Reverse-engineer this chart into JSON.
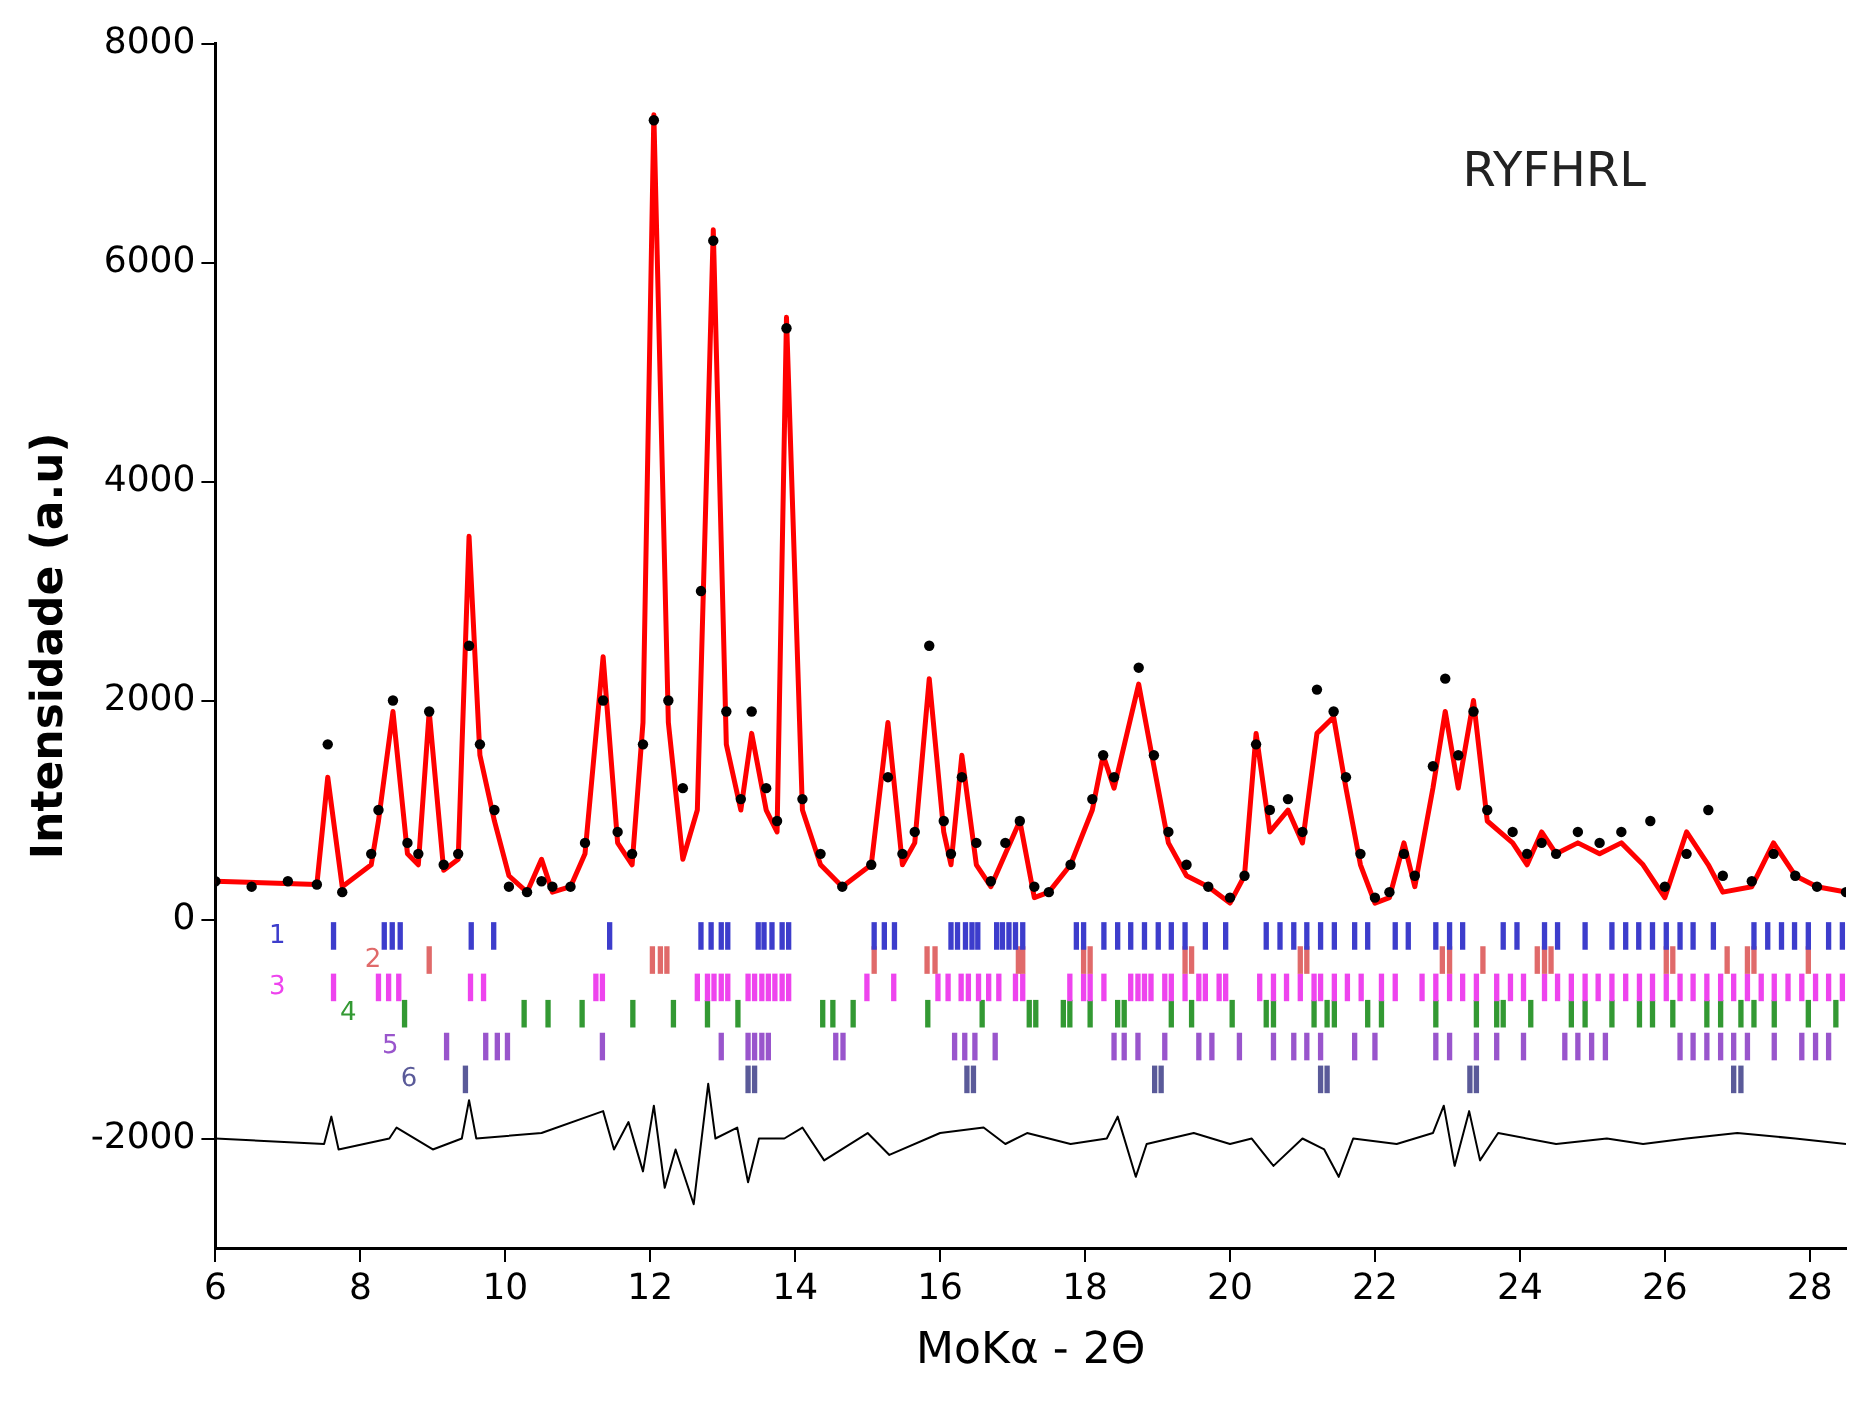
{
  "chart_data": {
    "type": "line",
    "xlabel": "MoKα - 2Θ",
    "ylabel": "Intensidade (a.u)",
    "annotations": [
      "RYFHRL"
    ],
    "xlim": [
      6,
      28.5
    ],
    "xticks": [
      6,
      8,
      10,
      12,
      14,
      16,
      18,
      20,
      22,
      24,
      26,
      28
    ],
    "ylim": [
      -3000,
      8000
    ],
    "yticks": [
      -2000,
      0,
      2000,
      4000,
      6000,
      8000
    ],
    "grid": false,
    "series": [
      {
        "type": "scatter",
        "marker": "circle",
        "color": "#000000",
        "x": [
          6.0,
          6.5,
          7.0,
          7.4,
          7.55,
          7.75,
          8.15,
          8.25,
          8.45,
          8.65,
          8.8,
          8.95,
          9.15,
          9.35,
          9.5,
          9.65,
          9.85,
          10.05,
          10.3,
          10.5,
          10.65,
          10.9,
          11.1,
          11.35,
          11.55,
          11.75,
          11.9,
          12.05,
          12.25,
          12.45,
          12.7,
          12.87,
          13.05,
          13.25,
          13.4,
          13.6,
          13.75,
          13.88,
          14.1,
          14.35,
          14.65,
          15.05,
          15.28,
          15.48,
          15.65,
          15.85,
          16.05,
          16.15,
          16.3,
          16.5,
          16.7,
          16.9,
          17.1,
          17.3,
          17.5,
          17.8,
          18.1,
          18.25,
          18.4,
          18.74,
          18.95,
          19.15,
          19.4,
          19.7,
          20.0,
          20.2,
          20.36,
          20.55,
          20.8,
          21.0,
          21.2,
          21.43,
          21.6,
          21.8,
          22.0,
          22.2,
          22.4,
          22.55,
          22.8,
          22.97,
          23.15,
          23.36,
          23.55,
          23.9,
          24.1,
          24.3,
          24.5,
          24.8,
          25.1,
          25.4,
          25.8,
          26.0,
          26.3,
          26.6,
          26.8,
          27.2,
          27.5,
          27.8,
          28.1,
          28.5
        ],
        "values": [
          350,
          300,
          350,
          320,
          1600,
          250,
          600,
          1000,
          2000,
          700,
          600,
          1900,
          500,
          600,
          2500,
          1600,
          1000,
          300,
          250,
          350,
          300,
          300,
          700,
          2000,
          800,
          600,
          1600,
          7300,
          2000,
          1200,
          3000,
          6200,
          1900,
          1100,
          1900,
          1200,
          900,
          5400,
          1100,
          600,
          300,
          500,
          1300,
          600,
          800,
          2500,
          900,
          600,
          1300,
          700,
          350,
          700,
          900,
          300,
          250,
          500,
          1100,
          1500,
          1300,
          2300,
          1500,
          800,
          500,
          300,
          200,
          400,
          1600,
          1000,
          1100,
          800,
          2100,
          1900,
          1300,
          600,
          200,
          250,
          600,
          400,
          1400,
          2200,
          1500,
          1900,
          1000,
          800,
          600,
          700,
          600,
          800,
          700,
          800,
          900,
          300,
          600,
          1000,
          400,
          350,
          600,
          400,
          300,
          250
        ]
      },
      {
        "color": "#ff0000",
        "x": [
          6.0,
          7.4,
          7.55,
          7.75,
          8.15,
          8.25,
          8.45,
          8.65,
          8.8,
          8.95,
          9.15,
          9.35,
          9.5,
          9.65,
          9.85,
          10.05,
          10.3,
          10.5,
          10.65,
          10.9,
          11.1,
          11.35,
          11.55,
          11.75,
          11.9,
          12.05,
          12.25,
          12.45,
          12.65,
          12.87,
          13.05,
          13.25,
          13.4,
          13.6,
          13.75,
          13.88,
          14.1,
          14.35,
          14.65,
          15.05,
          15.28,
          15.48,
          15.65,
          15.85,
          16.05,
          16.15,
          16.3,
          16.5,
          16.7,
          16.9,
          17.1,
          17.3,
          17.5,
          17.8,
          18.1,
          18.25,
          18.4,
          18.74,
          18.95,
          19.15,
          19.4,
          19.7,
          20.0,
          20.2,
          20.36,
          20.55,
          20.8,
          21.0,
          21.2,
          21.43,
          21.6,
          21.8,
          22.0,
          22.2,
          22.4,
          22.55,
          22.8,
          22.97,
          23.15,
          23.36,
          23.55,
          23.9,
          24.1,
          24.3,
          24.5,
          24.8,
          25.1,
          25.4,
          25.7,
          26.0,
          26.3,
          26.6,
          26.8,
          27.2,
          27.5,
          27.8,
          28.1,
          28.5
        ],
        "values": [
          350,
          320,
          1300,
          300,
          500,
          900,
          1900,
          600,
          500,
          1900,
          450,
          550,
          3500,
          1500,
          900,
          400,
          250,
          550,
          250,
          300,
          600,
          2400,
          700,
          500,
          1800,
          7350,
          1800,
          550,
          1000,
          6300,
          1600,
          1000,
          1700,
          1000,
          800,
          5500,
          1000,
          500,
          300,
          500,
          1800,
          500,
          700,
          2200,
          800,
          500,
          1500,
          500,
          300,
          600,
          900,
          200,
          250,
          500,
          1000,
          1500,
          1200,
          2150,
          1400,
          700,
          400,
          300,
          150,
          400,
          1700,
          800,
          1000,
          700,
          1700,
          1850,
          1200,
          500,
          150,
          200,
          700,
          300,
          1200,
          1900,
          1200,
          2000,
          900,
          700,
          500,
          800,
          600,
          700,
          600,
          700,
          500,
          200,
          800,
          500,
          250,
          300,
          700,
          400,
          300,
          250
        ]
      },
      {
        "color": "#000000",
        "x": [
          6.0,
          7.5,
          7.6,
          7.7,
          8.4,
          8.5,
          9.0,
          9.4,
          9.5,
          9.6,
          10.5,
          11.35,
          11.5,
          11.7,
          11.9,
          12.05,
          12.2,
          12.35,
          12.6,
          12.8,
          12.9,
          13.2,
          13.35,
          13.5,
          13.85,
          14.1,
          14.4,
          15.0,
          15.3,
          16.0,
          16.6,
          16.9,
          17.2,
          17.8,
          18.3,
          18.45,
          18.7,
          18.85,
          19.5,
          20.0,
          20.3,
          20.6,
          21.0,
          21.3,
          21.5,
          21.7,
          22.3,
          22.8,
          22.95,
          23.1,
          23.3,
          23.45,
          23.7,
          24.5,
          25.2,
          25.7,
          26.3,
          27.0,
          27.8,
          28.5
        ],
        "values": [
          -2000,
          -2050,
          -1800,
          -2100,
          -2000,
          -1900,
          -2100,
          -2000,
          -1650,
          -2000,
          -1950,
          -1750,
          -2100,
          -1850,
          -2300,
          -1700,
          -2450,
          -2100,
          -2600,
          -1500,
          -2000,
          -1900,
          -2400,
          -2000,
          -2000,
          -1900,
          -2200,
          -1950,
          -2150,
          -1950,
          -1900,
          -2050,
          -1950,
          -2050,
          -2000,
          -1800,
          -2350,
          -2050,
          -1950,
          -2050,
          -2000,
          -2250,
          -2000,
          -2100,
          -2350,
          -2000,
          -2050,
          -1950,
          -1700,
          -2250,
          -1750,
          -2200,
          -1950,
          -2050,
          -2000,
          -2050,
          -2000,
          -1950,
          -2000,
          -2050
        ]
      },
      {
        "type": "bar",
        "name": "1",
        "color": "#3d3dcc",
        "x": [
          7.63,
          8.33,
          8.44,
          8.55,
          9.53,
          9.84,
          11.44,
          12.7,
          12.84,
          12.98,
          13.07,
          13.49,
          13.57,
          13.68,
          13.82,
          13.91,
          15.09,
          15.23,
          15.37,
          16.15,
          16.24,
          16.35,
          16.44,
          16.52,
          16.78,
          16.86,
          16.95,
          17.04,
          17.14,
          17.88,
          17.98,
          18.26,
          18.45,
          18.63,
          18.82,
          19.01,
          19.19,
          19.38,
          19.66,
          19.94,
          20.5,
          20.69,
          20.88,
          21.06,
          21.25,
          21.44,
          21.72,
          21.9,
          22.28,
          22.46,
          22.84,
          23.03,
          23.21,
          23.77,
          23.96,
          24.34,
          24.52,
          24.9,
          25.27,
          25.46,
          25.64,
          25.83,
          26.02,
          26.21,
          26.39,
          26.67,
          27.23,
          27.42,
          27.61,
          27.79,
          27.98,
          28.26,
          28.45
        ],
        "base": [
          -270,
          -270,
          -270,
          -270,
          -270,
          -270,
          -270,
          -270,
          -270,
          -270,
          -270,
          -270,
          -270,
          -270,
          -270,
          -270,
          -270,
          -270,
          -270,
          -270,
          -270,
          -270,
          -270,
          -270,
          -270,
          -270,
          -270,
          -270,
          -270,
          -270,
          -270,
          -270,
          -270,
          -270,
          -270,
          -270,
          -270,
          -270,
          -270,
          -270,
          -270,
          -270,
          -270,
          -270,
          -270,
          -270,
          -270,
          -270,
          -270,
          -270,
          -270,
          -270,
          -270,
          -270,
          -270,
          -270,
          -270,
          -270,
          -270,
          -270,
          -270,
          -270,
          -270,
          -270,
          -270,
          -270,
          -270,
          -270,
          -270,
          -270,
          -270,
          -270,
          -270
        ],
        "values": [
          240,
          240,
          240,
          240,
          240,
          240,
          240,
          240,
          240,
          240,
          240,
          240,
          240,
          240,
          240,
          240,
          240,
          240,
          240,
          240,
          240,
          240,
          240,
          240,
          240,
          240,
          240,
          240,
          240,
          240,
          240,
          240,
          240,
          240,
          240,
          240,
          240,
          240,
          240,
          240,
          240,
          240,
          240,
          240,
          240,
          240,
          240,
          240,
          240,
          240,
          240,
          240,
          240,
          240,
          240,
          240,
          240,
          240,
          240,
          240,
          240,
          240,
          240,
          240,
          240,
          240,
          240,
          240,
          240,
          240,
          240,
          240,
          240
        ]
      },
      {
        "type": "bar",
        "name": "2",
        "color": "#e06a6a",
        "x": [
          8.95,
          12.03,
          12.14,
          12.23,
          15.09,
          15.82,
          15.93,
          17.08,
          17.14,
          17.98,
          18.07,
          19.38,
          19.47,
          20.97,
          21.06,
          22.93,
          23.03,
          23.49,
          24.24,
          24.34,
          24.43,
          26.02,
          26.11,
          26.86,
          27.14,
          27.23,
          27.98
        ],
        "base": [
          -490,
          -490,
          -490,
          -490,
          -490,
          -490,
          -490,
          -490,
          -490,
          -490,
          -490,
          -490,
          -490,
          -490,
          -490,
          -490,
          -490,
          -490,
          -490,
          -490,
          -490,
          -490,
          -490,
          -490,
          -490,
          -490,
          -490
        ],
        "values": [
          240,
          240,
          240,
          240,
          240,
          240,
          240,
          240,
          240,
          240,
          240,
          240,
          240,
          240,
          240,
          240,
          240,
          240,
          240,
          240,
          240,
          240,
          240,
          240,
          240,
          240,
          240
        ]
      },
      {
        "type": "bar",
        "name": "3",
        "color": "#ee44ee",
        "x": [
          7.63,
          8.25,
          8.39,
          8.53,
          9.52,
          9.7,
          11.25,
          11.34,
          12.65,
          12.79,
          12.88,
          12.98,
          13.07,
          13.35,
          13.44,
          13.54,
          13.63,
          13.72,
          13.82,
          13.91,
          14.99,
          15.36,
          15.97,
          16.11,
          16.29,
          16.39,
          16.53,
          16.67,
          16.81,
          17.04,
          17.14,
          17.79,
          17.98,
          18.07,
          18.26,
          18.63,
          18.73,
          18.82,
          18.91,
          19.1,
          19.19,
          19.38,
          19.57,
          19.66,
          19.85,
          19.94,
          20.41,
          20.6,
          20.78,
          20.97,
          21.16,
          21.25,
          21.44,
          21.62,
          21.81,
          22.09,
          22.28,
          22.65,
          22.84,
          23.03,
          23.21,
          23.4,
          23.68,
          23.87,
          24.05,
          24.34,
          24.52,
          24.71,
          24.9,
          25.08,
          25.27,
          25.46,
          25.65,
          25.83,
          26.02,
          26.21,
          26.39,
          26.58,
          26.77,
          26.95,
          27.14,
          27.33,
          27.51,
          27.7,
          27.89,
          28.08,
          28.26,
          28.45
        ],
        "base": [
          -740,
          -740,
          -740,
          -740,
          -740,
          -740,
          -740,
          -740,
          -740,
          -740,
          -740,
          -740,
          -740,
          -740,
          -740,
          -740,
          -740,
          -740,
          -740,
          -740,
          -740,
          -740,
          -740,
          -740,
          -740,
          -740,
          -740,
          -740,
          -740,
          -740,
          -740,
          -740,
          -740,
          -740,
          -740,
          -740,
          -740,
          -740,
          -740,
          -740,
          -740,
          -740,
          -740,
          -740,
          -740,
          -740,
          -740,
          -740,
          -740,
          -740,
          -740,
          -740,
          -740,
          -740,
          -740,
          -740,
          -740,
          -740,
          -740,
          -740,
          -740,
          -740,
          -740,
          -740,
          -740,
          -740,
          -740,
          -740,
          -740,
          -740,
          -740,
          -740,
          -740,
          -740,
          -740,
          -740,
          -740,
          -740,
          -740,
          -740,
          -740,
          -740,
          -740,
          -740,
          -740,
          -740,
          -740,
          -740
        ],
        "values": [
          240,
          240,
          240,
          240,
          240,
          240,
          240,
          240,
          240,
          240,
          240,
          240,
          240,
          240,
          240,
          240,
          240,
          240,
          240,
          240,
          240,
          240,
          240,
          240,
          240,
          240,
          240,
          240,
          240,
          240,
          240,
          240,
          240,
          240,
          240,
          240,
          240,
          240,
          240,
          240,
          240,
          240,
          240,
          240,
          240,
          240,
          240,
          240,
          240,
          240,
          240,
          240,
          240,
          240,
          240,
          240,
          240,
          240,
          240,
          240,
          240,
          240,
          240,
          240,
          240,
          240,
          240,
          240,
          240,
          240,
          240,
          240,
          240,
          240,
          240,
          240,
          240,
          240,
          240,
          240,
          240,
          240,
          240,
          240,
          240,
          240,
          240,
          240
        ]
      },
      {
        "type": "bar",
        "name": "4",
        "color": "#339933",
        "x": [
          8.61,
          10.26,
          10.59,
          11.06,
          11.76,
          12.32,
          12.79,
          13.21,
          14.38,
          14.52,
          14.8,
          15.83,
          16.58,
          17.23,
          17.32,
          17.7,
          17.79,
          18.07,
          18.45,
          18.54,
          19.19,
          19.47,
          20.03,
          20.5,
          20.6,
          21.16,
          21.34,
          21.44,
          21.9,
          22.09,
          22.84,
          23.4,
          23.68,
          23.77,
          24.15,
          24.71,
          24.9,
          25.27,
          25.65,
          25.83,
          26.11,
          26.58,
          26.77,
          27.05,
          27.23,
          27.51,
          27.98,
          28.36
        ],
        "base": [
          -980,
          -980,
          -980,
          -980,
          -980,
          -980,
          -980,
          -980,
          -980,
          -980,
          -980,
          -980,
          -980,
          -980,
          -980,
          -980,
          -980,
          -980,
          -980,
          -980,
          -980,
          -980,
          -980,
          -980,
          -980,
          -980,
          -980,
          -980,
          -980,
          -980,
          -980,
          -980,
          -980,
          -980,
          -980,
          -980,
          -980,
          -980,
          -980,
          -980,
          -980,
          -980,
          -980,
          -980,
          -980,
          -980,
          -980,
          -980
        ],
        "values": [
          240,
          240,
          240,
          240,
          240,
          240,
          240,
          240,
          240,
          240,
          240,
          240,
          240,
          240,
          240,
          240,
          240,
          240,
          240,
          240,
          240,
          240,
          240,
          240,
          240,
          240,
          240,
          240,
          240,
          240,
          240,
          240,
          240,
          240,
          240,
          240,
          240,
          240,
          240,
          240,
          240,
          240,
          240,
          240,
          240,
          240,
          240,
          240
        ]
      },
      {
        "type": "bar",
        "name": "5",
        "color": "#9955cc",
        "x": [
          9.19,
          9.73,
          9.89,
          10.03,
          11.34,
          12.98,
          13.35,
          13.44,
          13.54,
          13.63,
          14.56,
          14.66,
          16.2,
          16.34,
          16.48,
          16.76,
          18.4,
          18.54,
          18.73,
          19.1,
          19.57,
          19.75,
          20.13,
          20.6,
          20.88,
          21.06,
          21.25,
          21.72,
          22.0,
          22.84,
          23.03,
          23.4,
          23.68,
          24.05,
          24.62,
          24.8,
          24.99,
          25.18,
          26.21,
          26.39,
          26.58,
          26.77,
          26.95,
          27.14,
          27.51,
          27.89,
          28.08,
          28.26
        ],
        "base": [
          -1280,
          -1280,
          -1280,
          -1280,
          -1280,
          -1280,
          -1280,
          -1280,
          -1280,
          -1280,
          -1280,
          -1280,
          -1280,
          -1280,
          -1280,
          -1280,
          -1280,
          -1280,
          -1280,
          -1280,
          -1280,
          -1280,
          -1280,
          -1280,
          -1280,
          -1280,
          -1280,
          -1280,
          -1280,
          -1280,
          -1280,
          -1280,
          -1280,
          -1280,
          -1280,
          -1280,
          -1280,
          -1280,
          -1280,
          -1280,
          -1280,
          -1280,
          -1280,
          -1280,
          -1280,
          -1280,
          -1280,
          -1280
        ],
        "values": [
          240,
          240,
          240,
          240,
          240,
          240,
          240,
          240,
          240,
          240,
          240,
          240,
          240,
          240,
          240,
          240,
          240,
          240,
          240,
          240,
          240,
          240,
          240,
          240,
          240,
          240,
          240,
          240,
          240,
          240,
          240,
          240,
          240,
          240,
          240,
          240,
          240,
          240,
          240,
          240,
          240,
          240,
          240,
          240,
          240,
          240,
          240,
          240
        ]
      },
      {
        "type": "bar",
        "name": "6",
        "color": "#5a5a99",
        "x": [
          9.45,
          13.35,
          13.44,
          16.37,
          16.46,
          18.96,
          19.05,
          21.25,
          21.34,
          23.31,
          23.4,
          26.95,
          27.05
        ],
        "base": [
          -1580,
          -1580,
          -1580,
          -1580,
          -1580,
          -1580,
          -1580,
          -1580,
          -1580,
          -1580,
          -1580,
          -1580,
          -1580
        ],
        "values": [
          240,
          240,
          240,
          240,
          240,
          240,
          240,
          240,
          240,
          240,
          240,
          240,
          240
        ]
      }
    ]
  }
}
